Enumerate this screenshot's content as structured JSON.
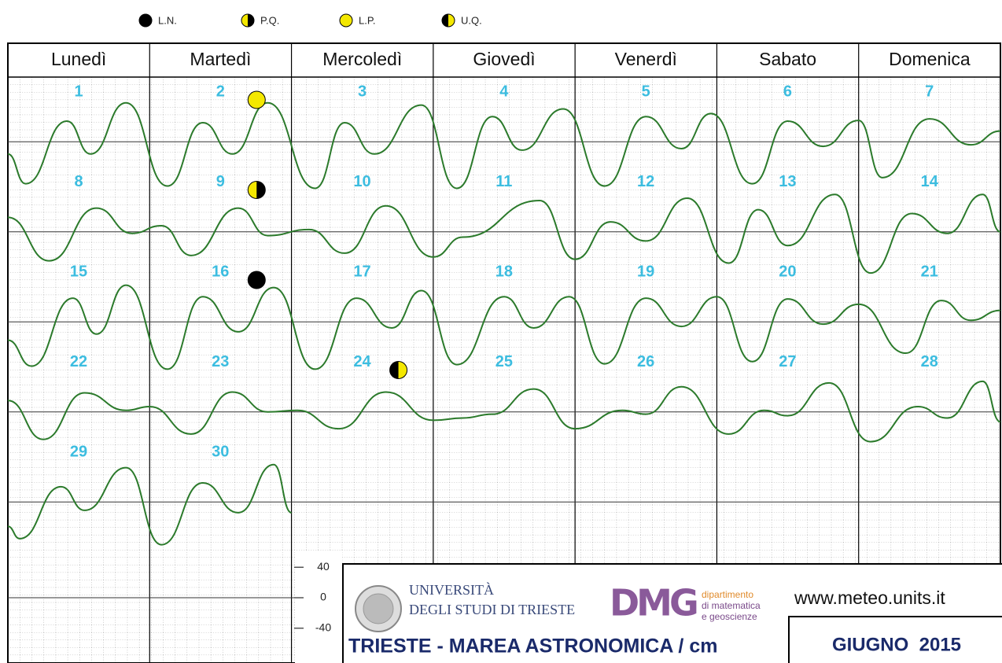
{
  "chart_data": {
    "type": "tide-calendar",
    "legend": [
      "L.N.",
      "P.Q.",
      "L.P.",
      "U.Q."
    ],
    "weekdays": [
      "Lunedì",
      "Martedì",
      "Mercoledì",
      "Giovedì",
      "Venerdì",
      "Sabato",
      "Domenica"
    ],
    "days": [
      1,
      2,
      3,
      4,
      5,
      6,
      7,
      8,
      9,
      10,
      11,
      12,
      13,
      14,
      15,
      16,
      17,
      18,
      19,
      20,
      21,
      22,
      23,
      24,
      25,
      26,
      27,
      28,
      29,
      30
    ],
    "moons": [
      {
        "day": 2,
        "phase": "L.P."
      },
      {
        "day": 9,
        "phase": "P.Q."
      },
      {
        "day": 16,
        "phase": "L.N."
      },
      {
        "day": 24,
        "phase": "U.Q."
      }
    ],
    "xlim": [
      0,
      168
    ],
    "ylim": [
      -59,
      59
    ],
    "color": "#2b7a2b",
    "weeks": [
      {
        "x": [
          0,
          3,
          10,
          14,
          20,
          27,
          33,
          38,
          44,
          52,
          57,
          62,
          70,
          76,
          82,
          87,
          94,
          101,
          108,
          114,
          119,
          126,
          132,
          138,
          144,
          148,
          156,
          163,
          168
        ],
        "values": [
          -16,
          -55,
          27,
          -16,
          51,
          -58,
          25,
          -16,
          51,
          -61,
          25,
          -16,
          48,
          -61,
          33,
          -11,
          43,
          -58,
          33,
          -9,
          37,
          -55,
          27,
          -6,
          28,
          -47,
          30,
          -4,
          14
        ]
      },
      {
        "x": [
          0,
          7,
          15,
          21,
          26,
          31,
          39,
          44,
          51,
          57,
          64,
          72,
          77,
          90,
          96,
          102,
          108,
          115,
          122,
          127,
          132,
          140,
          146,
          153,
          159,
          165,
          168
        ],
        "values": [
          19,
          -38,
          31,
          -2,
          8,
          -31,
          31,
          -5,
          3,
          -28,
          34,
          -33,
          -7,
          41,
          -36,
          13,
          -12,
          44,
          -41,
          29,
          -18,
          49,
          -54,
          24,
          -2,
          49,
          0
        ]
      },
      {
        "x": [
          0,
          4,
          11,
          15,
          20,
          27,
          33,
          39,
          45,
          52,
          59,
          65,
          70,
          76,
          84,
          89,
          95,
          101,
          108,
          114,
          120,
          126,
          132,
          138,
          144,
          152,
          158,
          163,
          168
        ],
        "values": [
          -24,
          -58,
          31,
          -16,
          48,
          -62,
          33,
          -13,
          45,
          -62,
          31,
          -8,
          41,
          -56,
          33,
          -8,
          33,
          -55,
          31,
          -6,
          33,
          -52,
          30,
          -3,
          23,
          -41,
          28,
          2,
          15
        ]
      },
      {
        "x": [
          0,
          6,
          13,
          20,
          24,
          31,
          38,
          44,
          49,
          56,
          64,
          72,
          77,
          82,
          89,
          96,
          104,
          108,
          114,
          122,
          128,
          132,
          139,
          146,
          154,
          159,
          165,
          168
        ],
        "values": [
          15,
          -36,
          25,
          2,
          7,
          -29,
          26,
          0,
          2,
          -22,
          26,
          -11,
          -8,
          -3,
          30,
          -22,
          2,
          -3,
          33,
          -29,
          2,
          -5,
          38,
          -39,
          7,
          -8,
          40,
          -13
        ]
      },
      {
        "x": [
          0,
          2,
          9,
          13,
          20,
          26,
          33,
          39,
          45,
          48
        ],
        "values": [
          -32,
          -48,
          20,
          -11,
          45,
          -56,
          25,
          -14,
          49,
          -14
        ]
      }
    ],
    "scale_ticks": [
      40,
      0,
      -40
    ],
    "footer": {
      "university_1": "UNIVERSITÀ",
      "university_2": "DEGLI STUDI DI TRIESTE",
      "dmg_logo": "DMG",
      "department_1": "dipartimento",
      "department_2": "di matematica",
      "department_3": "e geoscienze",
      "website": "www.meteo.units.it",
      "title": "TRIESTE - MAREA ASTRONOMICA / cm",
      "month": "GIUGNO  2015"
    }
  }
}
